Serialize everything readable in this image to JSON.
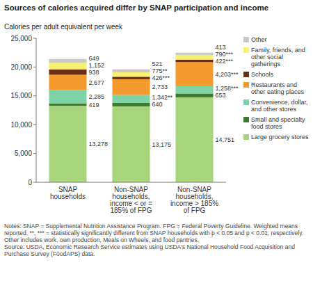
{
  "chart_data": {
    "type": "bar",
    "title": "Sources of calories acquired differ by SNAP participation and income",
    "ylabel": "Calories per adult equivalent per week",
    "categories": [
      "SNAP households",
      "Non-SNAP households, income < or = 185% of FPG",
      "Non-SNAP households, income > 185% of FPG"
    ],
    "stacked": true,
    "data_labels": true,
    "grid": false,
    "legend": "right",
    "ylim": [
      0,
      25000
    ],
    "yticks": [
      0,
      {
        "value": 5000,
        "label": "5,000"
      },
      {
        "value": 10000,
        "label": "10,000"
      },
      {
        "value": 15000,
        "label": "15,000"
      },
      {
        "value": 20000,
        "label": "20,000"
      },
      {
        "value": 25000,
        "label": "25,000"
      }
    ],
    "series": [
      {
        "name": "Large grocery stores",
        "color": "#a8d57c",
        "values": [
          13278,
          13175,
          14751
        ],
        "value_labels": [
          "13,278",
          "13,175",
          "14,751"
        ]
      },
      {
        "name": "Small and specialty food stores",
        "color": "#3d7b2c",
        "values": [
          419,
          640,
          653
        ],
        "value_labels": [
          "419",
          "640",
          "653"
        ]
      },
      {
        "name": "Convenience, dollar, and other stores",
        "color": "#7ed3a6",
        "values": [
          2285,
          1342,
          1258
        ],
        "value_labels": [
          "2,285",
          "1,342**",
          "1,258***"
        ]
      },
      {
        "name": "Restaurants and other eating places",
        "color": "#f59b2d",
        "values": [
          2677,
          2733,
          4203
        ],
        "value_labels": [
          "2,677",
          "2,733",
          "4,203***"
        ]
      },
      {
        "name": "Schools",
        "color": "#6a2e14",
        "values": [
          938,
          426,
          422
        ],
        "value_labels": [
          "938",
          "426***",
          "422***"
        ]
      },
      {
        "name": "Family, friends, and other social gatherings",
        "color": "#f8f06e",
        "values": [
          1152,
          775,
          790
        ],
        "value_labels": [
          "1,152",
          "775**",
          "790***"
        ]
      },
      {
        "name": "Other",
        "color": "#c9c9c9",
        "values": [
          649,
          521,
          413
        ],
        "value_labels": [
          "649",
          "521",
          "413"
        ]
      }
    ],
    "notes": "Notes: SNAP = Supplemental Nutrition Assistance Program. FPG = Federal Poverty Guideline. Weighted means reported. **, *** = statistically significantly different from SNAP households with p < 0.05 and p < 0.01, respectively. Other includes work, own production, Meals on Wheels, and food pantries.",
    "source": "Source: USDA, Economic Research Service estimates using USDA's National Household Food Acquisition and Purchase Survey (FoodAPS) data."
  }
}
